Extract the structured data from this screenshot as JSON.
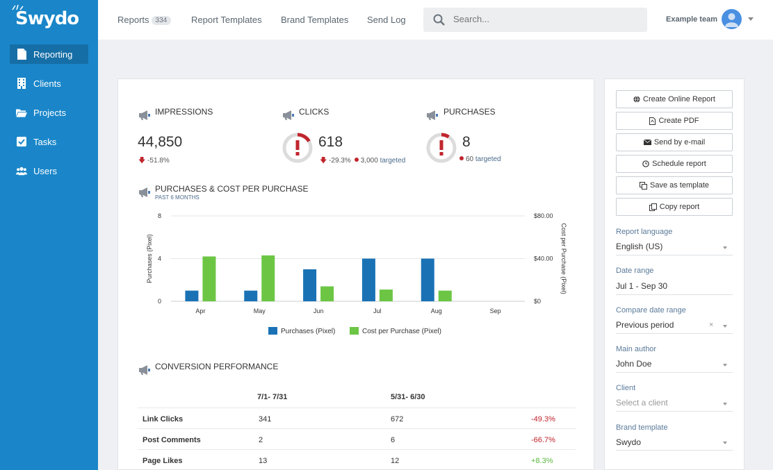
{
  "brand": {
    "logo": "Swydo",
    "accent": "#1a86c9",
    "nav_active": "#156ea6"
  },
  "sidebar": {
    "items": [
      {
        "label": "Reporting",
        "icon": "file-icon",
        "active": true
      },
      {
        "label": "Clients",
        "icon": "building-icon"
      },
      {
        "label": "Projects",
        "icon": "folder-icon"
      },
      {
        "label": "Tasks",
        "icon": "checkbox-icon"
      },
      {
        "label": "Users",
        "icon": "users-icon"
      }
    ]
  },
  "topbar": {
    "reports_label": "Reports",
    "reports_count": "334",
    "report_templates": "Report Templates",
    "brand_templates": "Brand Templates",
    "send_log": "Send Log",
    "search_placeholder": "Search...",
    "team": "Example team"
  },
  "kpis": {
    "impressions": {
      "title": "IMPRESSIONS",
      "value": "44,850",
      "delta": "-51.8%"
    },
    "clicks": {
      "title": "CLICKS",
      "value": "618",
      "delta": "-29.3%",
      "targeted_value": "3,000",
      "targeted_label": "targeted"
    },
    "purchases": {
      "title": "PURCHASES",
      "value": "8",
      "targeted_value": "60",
      "targeted_label": "targeted"
    }
  },
  "chart_section": {
    "title": "PURCHASES & COST PER PURCHASE",
    "subtitle": "PAST 6 MONTHS"
  },
  "chart_data": {
    "type": "bar",
    "categories": [
      "Apr",
      "May",
      "Jun",
      "Jul",
      "Aug",
      "Sep"
    ],
    "series": [
      {
        "name": "Purchases (Pixel)",
        "axis": "left",
        "color": "#1a72b5",
        "values": [
          1,
          1,
          3,
          4,
          4,
          0
        ]
      },
      {
        "name": "Cost per Purchase (Pixel)",
        "axis": "right",
        "color": "#6cc644",
        "values": [
          42,
          43,
          14,
          11,
          10,
          0
        ]
      }
    ],
    "ylabel": "Purchases (Pixel)",
    "ylabel_right": "Cost per Purchase (Pixel)",
    "ylim": [
      0,
      8
    ],
    "ylim_right": [
      0,
      80
    ],
    "yticks": [
      "0",
      "4",
      "8"
    ],
    "yticks_right": [
      "$0",
      "$40.00",
      "$80.00"
    ],
    "legend": "bottom",
    "grid": true
  },
  "conversion": {
    "title": "CONVERSION PERFORMANCE",
    "col1": "7/1- 7/31",
    "col2": "5/31- 6/30",
    "rows": [
      {
        "label": "Link Clicks",
        "a": "341",
        "b": "672",
        "change": "-49.3%"
      },
      {
        "label": "Post Comments",
        "a": "2",
        "b": "6",
        "change": "-66.7%"
      },
      {
        "label": "Page Likes",
        "a": "13",
        "b": "12",
        "change": "+8.3%"
      }
    ]
  },
  "panel": {
    "buttons": [
      {
        "label": "Create Online Report",
        "icon": "globe-icon"
      },
      {
        "label": "Create PDF",
        "icon": "pdf-icon"
      },
      {
        "label": "Send by e-mail",
        "icon": "envelope-icon"
      },
      {
        "label": "Schedule report",
        "icon": "clock-icon"
      },
      {
        "label": "Save as template",
        "icon": "copy-icon"
      },
      {
        "label": "Copy report",
        "icon": "duplicate-icon"
      }
    ],
    "fields": [
      {
        "label": "Report language",
        "value": "English (US)"
      },
      {
        "label": "Date range",
        "value": "Jul 1 - Sep 30"
      },
      {
        "label": "Compare date range",
        "value": "Previous period"
      },
      {
        "label": "Main author",
        "value": "John Doe"
      },
      {
        "label": "Client",
        "placeholder": "Select a client"
      },
      {
        "label": "Brand template",
        "value": "Swydo"
      }
    ]
  }
}
